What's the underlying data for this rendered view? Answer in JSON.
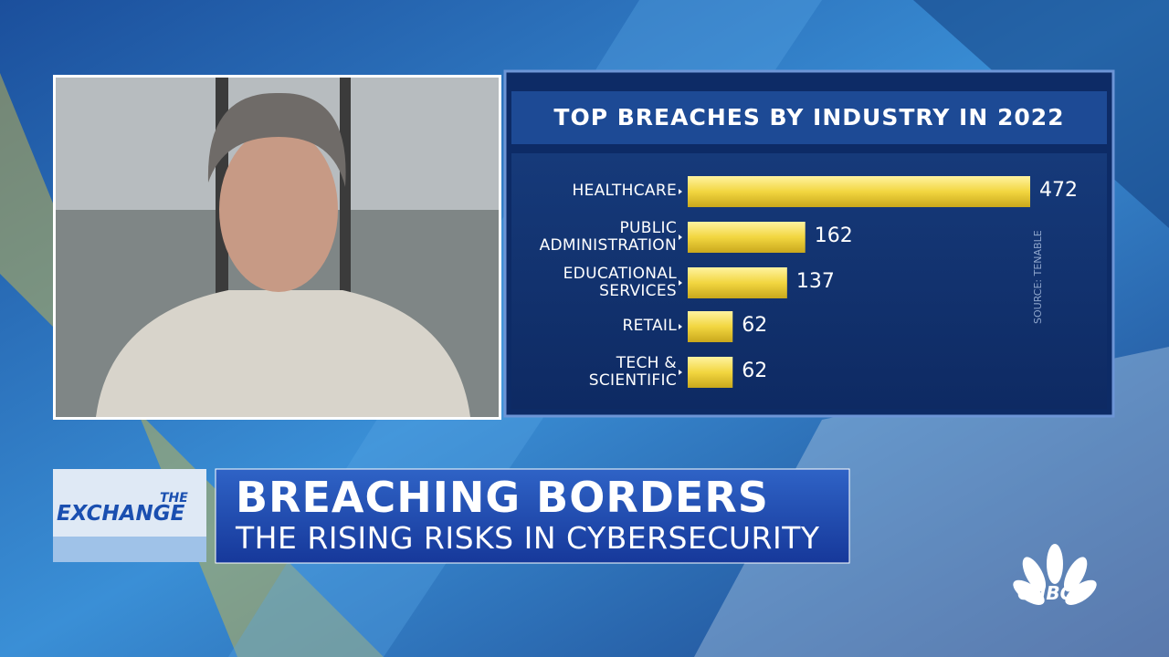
{
  "chart_data": {
    "type": "bar",
    "orientation": "horizontal",
    "title": "TOP BREACHES BY INDUSTRY IN 2022",
    "source": "SOURCE: TENABLE",
    "categories": [
      "HEALTHCARE",
      "PUBLIC\nADMINISTRATION",
      "EDUCATIONAL\nSERVICES",
      "RETAIL",
      "TECH &\nSCIENTIFIC"
    ],
    "values": [
      472,
      162,
      137,
      62,
      62
    ],
    "color": "#f2d640"
  },
  "lower_third": {
    "logo_top": "THE",
    "logo_main": "EXCHANGE",
    "headline": "BREACHING BORDERS",
    "subheadline": "THE RISING RISKS IN CYBERSECURITY"
  },
  "network": "CNBC"
}
